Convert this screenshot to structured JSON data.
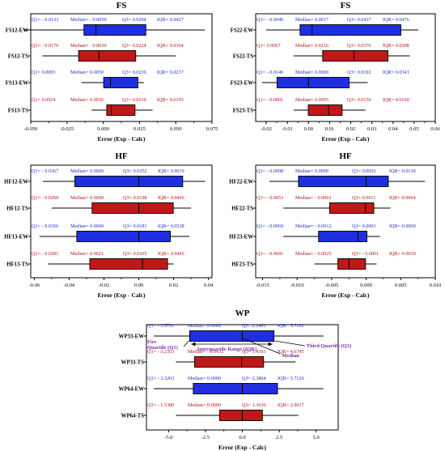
{
  "colors": {
    "ew": "#1f2fe0",
    "ts": "#c01818",
    "annotation": "#7b2fa3"
  },
  "chart_data": [
    {
      "type": "box",
      "title": "FS",
      "xlabel": "Error (Exp - Calc)",
      "xlim": [
        -0.05,
        0.075
      ],
      "ticks": [
        "-0.050",
        "-0.025",
        "0.000",
        "0.025",
        "0.050",
        "0.075"
      ],
      "rows": [
        {
          "label": "FS12-EW",
          "kind": "ew",
          "whisker": [
            -0.055,
            0.07
          ],
          "q1": -0.0133,
          "median": -0.005,
          "q3": 0.0294,
          "stats": [
            "Q1= - 0.0133",
            "Median= - 0.0050",
            "Q3= 0.0294",
            "IQR= 0.0427"
          ]
        },
        {
          "label": "FS12-TS",
          "kind": "ts",
          "whisker": [
            -0.042,
            0.05
          ],
          "q1": -0.017,
          "median": -0.003,
          "q3": 0.0224,
          "stats": [
            "Q1= - 0.0170",
            "Median= - 0.0030",
            "Q3= 0.0224",
            "IQR= 0.0394"
          ]
        },
        {
          "label": "FS13-EW",
          "kind": "ew",
          "whisker": [
            -0.015,
            0.028
          ],
          "q1": 0.0003,
          "median": 0.005,
          "q3": 0.0239,
          "stats": [
            "Q1= 0.0003",
            "Median= 0.0050",
            "Q3= 0.0239",
            "IQR= 0.0237"
          ]
        },
        {
          "label": "FS13-TS",
          "kind": "ts",
          "whisker": [
            -0.008,
            0.034
          ],
          "q1": 0.0024,
          "median": 0.0056,
          "q3": 0.0219,
          "stats": [
            "Q1= 0.0024",
            "Median= 0.0056",
            "Q3= 0.0219",
            "IQR= 0.0195"
          ]
        }
      ]
    },
    {
      "type": "box",
      "title": "FS",
      "xlabel": "Error (Exp - Calc)",
      "xlim": [
        -0.025,
        0.06
      ],
      "ticks": [
        "-0.02",
        "-0.01",
        "0.00",
        "0.01",
        "0.02",
        "0.03",
        "0.04",
        "0.05",
        "0.06"
      ],
      "rows": [
        {
          "label": "FS22-EW",
          "kind": "ew",
          "whisker": [
            -0.02,
            0.052
          ],
          "q1": -0.004,
          "median": 0.0017,
          "q3": 0.0437,
          "stats": [
            "Q1= - 0.0040",
            "Median= 0.0017",
            "Q3= 0.0437",
            "IQR= 0.0476"
          ]
        },
        {
          "label": "FS22-TS",
          "kind": "ts",
          "whisker": [
            -0.007,
            0.048
          ],
          "q1": 0.0067,
          "median": 0.0216,
          "q3": 0.0376,
          "stats": [
            "Q1= 0.0067",
            "Median= 0.0216",
            "Q3= 0.0376",
            "IQR= 0.0308"
          ]
        },
        {
          "label": "FS23-EW",
          "kind": "ew",
          "whisker": [
            -0.022,
            0.028
          ],
          "q1": -0.0149,
          "median": 0.0,
          "q3": 0.0192,
          "stats": [
            "Q1= - 0.0149",
            "Median= 0.0000",
            "Q3= 0.0192",
            "IQR= 0.0341"
          ]
        },
        {
          "label": "FS23-TS",
          "kind": "ts",
          "whisker": [
            -0.007,
            0.027
          ],
          "q1": -0.0001,
          "median": 0.0095,
          "q3": 0.0159,
          "stats": [
            "Q1= - 0.0001",
            "Median= 0.0095",
            "Q3= 0.0159",
            "IQR= 0.0160"
          ]
        }
      ]
    },
    {
      "type": "box",
      "title": "HF",
      "xlabel": "Error (Exp - Calc)",
      "xlim": [
        -0.062,
        0.042
      ],
      "ticks": [
        "-0.06",
        "-0.04",
        "-0.02",
        "0.00",
        "0.02",
        "0.04"
      ],
      "rows": [
        {
          "label": "HF12-EW",
          "kind": "ew",
          "whisker": [
            -0.055,
            0.038
          ],
          "q1": -0.0367,
          "median": 0.0,
          "q3": 0.0252,
          "stats": [
            "Q1= - 0.0367",
            "Median= 0.0000",
            "Q3= 0.0252",
            "IQR= 0.0619"
          ]
        },
        {
          "label": "HF12-TS",
          "kind": "ts",
          "whisker": [
            -0.05,
            0.03
          ],
          "q1": -0.0268,
          "median": 0.0,
          "q3": 0.0198,
          "stats": [
            "Q1= - 0.0268",
            "Median= 0.0000",
            "Q3= 0.0198",
            "IQR= 0.0466"
          ]
        },
        {
          "label": "HF13-EW",
          "kind": "ew",
          "whisker": [
            -0.057,
            0.029
          ],
          "q1": -0.0356,
          "median": 0.0,
          "q3": 0.0181,
          "stats": [
            "Q1= - 0.0356",
            "Median= 0.0000",
            "Q3= 0.0181",
            "IQR= 0.0538"
          ]
        },
        {
          "label": "HF13-TS",
          "kind": "ts",
          "whisker": [
            -0.052,
            0.02
          ],
          "q1": -0.0281,
          "median": 0.0021,
          "q3": 0.0165,
          "stats": [
            "Q1= - 0.0281",
            "Median= 0.0021",
            "Q3= 0.0165",
            "IQR= 0.0445"
          ]
        }
      ]
    },
    {
      "type": "box",
      "title": "HF",
      "xlabel": "Error (Exp - Calc)",
      "xlim": [
        -0.016,
        0.01
      ],
      "ticks": [
        "-0.015",
        "-0.010",
        "-0.005",
        "0.000",
        "0.005",
        "0.010"
      ],
      "rows": [
        {
          "label": "HF22-EW",
          "kind": "ew",
          "whisker": [
            -0.014,
            0.0085
          ],
          "q1": -0.0098,
          "median": 0.0,
          "q3": 0.0032,
          "stats": [
            "Q1= - 0.0098",
            "Median= 0.0000",
            "Q3= 0.0032",
            "IQR= 0.0130"
          ]
        },
        {
          "label": "HF22-TS",
          "kind": "ts",
          "whisker": [
            -0.012,
            0.0035
          ],
          "q1": -0.0053,
          "median": -0.0001,
          "q3": 0.0011,
          "stats": [
            "Q1= - 0.0053",
            "Median= - 0.0001",
            "Q3= 0.0011",
            "IQR= 0.0064"
          ]
        },
        {
          "label": "HF23-EW",
          "kind": "ew",
          "whisker": [
            -0.012,
            0.002
          ],
          "q1": -0.0069,
          "median": -0.0012,
          "q3": 0.0001,
          "stats": [
            "Q1= - 0.0069",
            "Median= - 0.0012",
            "Q3= 0.0001",
            "IQR= 0.0069"
          ]
        },
        {
          "label": "HF23-TS",
          "kind": "ts",
          "whisker": [
            -0.0075,
            0.0015
          ],
          "q1": -0.0041,
          "median": -0.0025,
          "q3": -0.0001,
          "stats": [
            "Q1= - 0.0041",
            "Median= - 0.0025",
            "Q3= - 0.0001",
            "IQR= 0.0039"
          ]
        }
      ]
    },
    {
      "type": "box",
      "title": "WP",
      "xlabel": "Error (Exp - Calc)",
      "xlim": [
        -6.5,
        6.5
      ],
      "ticks": [
        "-5.0",
        "-2.5",
        "0.0",
        "2.5",
        "5.0"
      ],
      "rows": [
        {
          "label": "WP33-EW",
          "kind": "ew",
          "whisker": [
            -6.0,
            5.5
          ],
          "q1": -3.5701,
          "median": 0.0,
          "q3": 2.1461,
          "stats": [
            "Q1= - 3.5701",
            "Median= 0.0000",
            "Q3= 2.1461",
            "IQR= 5.7162"
          ]
        },
        {
          "label": "WP33-TS",
          "kind": "ts",
          "whisker": [
            -4.5,
            3.6
          ],
          "q1": -3.2353,
          "median": -0.0432,
          "q3": 1.4393,
          "stats": [
            "Q1= - 3.2353",
            "Median= - 0.0432",
            "Q3= 1.4393",
            "IQR= 4.6745"
          ]
        },
        {
          "label": "WP64-EW",
          "kind": "ew",
          "whisker": [
            -6.0,
            5.5
          ],
          "q1": -3.3263,
          "median": 0.0,
          "q3": 2.3864,
          "stats": [
            "Q1= - 3.3263",
            "Median= 0.0000",
            "Q3= 2.3864",
            "IQR= 5.7126"
          ]
        },
        {
          "label": "WP64-TS",
          "kind": "ts",
          "whisker": [
            -4.5,
            3.8
          ],
          "q1": -1.538,
          "median": 0.0,
          "q3": 1.3636,
          "stats": [
            "Q1= - 1.5380",
            "Median= 0.0000",
            "Q3= 1.3636",
            "IQR= 2.9017"
          ]
        }
      ],
      "annotations": {
        "q1": [
          "Firs",
          "Quartile (Q1)"
        ],
        "iqr": "Interquartile Range (IQR)",
        "median": "Median",
        "q3": "Third Quartile (Q3)"
      }
    }
  ]
}
